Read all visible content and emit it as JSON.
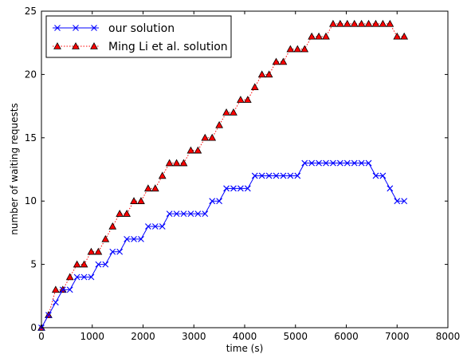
{
  "chart_data": {
    "type": "line",
    "xlabel": "time (s)",
    "ylabel": "number of waiting requests",
    "xlim": [
      0,
      8000
    ],
    "ylim": [
      0,
      25
    ],
    "xticks": [
      0,
      1000,
      2000,
      3000,
      4000,
      5000,
      6000,
      7000,
      8000
    ],
    "yticks": [
      0,
      5,
      10,
      15,
      20,
      25
    ],
    "grid": false,
    "legend_position": "top-left",
    "series": [
      {
        "name": "our solution",
        "color": "#0000ff",
        "marker": "x",
        "linestyle": "solid",
        "x": [
          0,
          140,
          280,
          420,
          560,
          700,
          840,
          980,
          1120,
          1260,
          1400,
          1540,
          1680,
          1820,
          1960,
          2100,
          2240,
          2380,
          2520,
          2660,
          2800,
          2940,
          3080,
          3220,
          3360,
          3500,
          3640,
          3780,
          3920,
          4060,
          4200,
          4340,
          4480,
          4620,
          4760,
          4900,
          5040,
          5180,
          5320,
          5460,
          5600,
          5740,
          5880,
          6020,
          6160,
          6300,
          6440,
          6580,
          6720,
          6860,
          7000,
          7140
        ],
        "y": [
          0,
          1,
          2,
          3,
          3,
          4,
          4,
          4,
          5,
          5,
          6,
          6,
          7,
          7,
          7,
          8,
          8,
          8,
          9,
          9,
          9,
          9,
          9,
          9,
          10,
          10,
          11,
          11,
          11,
          11,
          12,
          12,
          12,
          12,
          12,
          12,
          12,
          13,
          13,
          13,
          13,
          13,
          13,
          13,
          13,
          13,
          13,
          12,
          12,
          11,
          10,
          10
        ]
      },
      {
        "name": "Ming Li et al. solution",
        "color": "#ff0000",
        "marker": "^",
        "linestyle": "dotted",
        "x": [
          0,
          140,
          280,
          420,
          560,
          700,
          840,
          980,
          1120,
          1260,
          1400,
          1540,
          1680,
          1820,
          1960,
          2100,
          2240,
          2380,
          2520,
          2660,
          2800,
          2940,
          3080,
          3220,
          3360,
          3500,
          3640,
          3780,
          3920,
          4060,
          4200,
          4340,
          4480,
          4620,
          4760,
          4900,
          5040,
          5180,
          5320,
          5460,
          5600,
          5740,
          5880,
          6020,
          6160,
          6300,
          6440,
          6580,
          6720,
          6860,
          7000,
          7140
        ],
        "y": [
          0,
          1,
          3,
          3,
          4,
          5,
          5,
          6,
          6,
          7,
          8,
          9,
          9,
          10,
          10,
          11,
          11,
          12,
          13,
          13,
          13,
          14,
          14,
          15,
          15,
          16,
          17,
          17,
          18,
          18,
          19,
          20,
          20,
          21,
          21,
          22,
          22,
          22,
          23,
          23,
          23,
          24,
          24,
          24,
          24,
          24,
          24,
          24,
          24,
          24,
          23,
          23
        ]
      }
    ]
  }
}
